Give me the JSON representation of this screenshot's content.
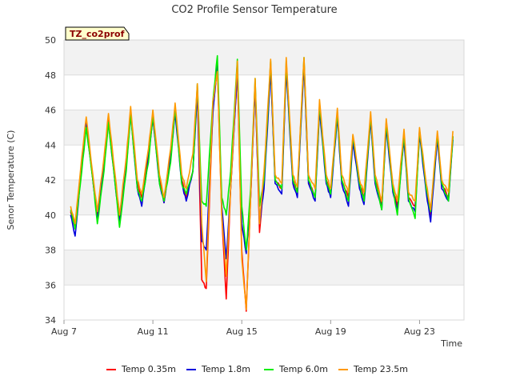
{
  "chart_data": {
    "type": "line",
    "title": "CO2 Profile Sensor Temperature",
    "badge": "TZ_co2prof",
    "xlabel": "Time",
    "ylabel": "Senor Temperature (C)",
    "ylim": [
      34,
      50
    ],
    "yticks": [
      34,
      36,
      38,
      40,
      42,
      44,
      46,
      48,
      50
    ],
    "ytick_labels": [
      "34",
      "36",
      "38",
      "40",
      "42",
      "44",
      "46",
      "48",
      "50"
    ],
    "xlim": [
      7,
      25
    ],
    "xticks": [
      7,
      11,
      15,
      19,
      23
    ],
    "xtick_labels": [
      "Aug 7",
      "Aug 11",
      "Aug 15",
      "Aug 19",
      "Aug 23"
    ],
    "grid": true,
    "legend_position": "bottom",
    "series": [
      {
        "name": "Temp 0.35m",
        "color": "#ff0000",
        "x": [
          7.3,
          7.5,
          7.8,
          8.0,
          8.3,
          8.5,
          8.8,
          9.0,
          9.3,
          9.5,
          9.8,
          10.0,
          10.3,
          10.5,
          10.8,
          11.0,
          11.3,
          11.5,
          11.8,
          12.0,
          12.3,
          12.5,
          12.8,
          13.0,
          13.2,
          13.4,
          13.7,
          13.9,
          14.1,
          14.3,
          14.5,
          14.8,
          15.0,
          15.2,
          15.4,
          15.6,
          15.8,
          16.0,
          16.3,
          16.5,
          16.8,
          17.0,
          17.3,
          17.5,
          17.8,
          18.0,
          18.3,
          18.5,
          18.8,
          19.0,
          19.3,
          19.5,
          19.8,
          20.0,
          20.3,
          20.5,
          20.8,
          21.0,
          21.3,
          21.5,
          21.8,
          22.0,
          22.3,
          22.5,
          22.8,
          23.0,
          23.3,
          23.5,
          23.8,
          24.0,
          24.3,
          24.5
        ],
        "values": [
          40.2,
          39.3,
          43.0,
          45.3,
          42.0,
          40.0,
          43.0,
          45.5,
          42.0,
          39.8,
          43.0,
          45.9,
          41.8,
          41.0,
          43.5,
          45.6,
          42.0,
          40.7,
          43.5,
          46.0,
          42.0,
          41.0,
          42.5,
          47.2,
          36.3,
          35.8,
          46.0,
          48.5,
          40.0,
          35.2,
          41.5,
          48.2,
          38.0,
          34.5,
          41.0,
          47.5,
          39.0,
          42.0,
          48.5,
          42.0,
          41.5,
          48.5,
          42.0,
          41.3,
          48.8,
          42.0,
          41.0,
          46.2,
          42.0,
          41.2,
          45.8,
          42.0,
          41.0,
          44.3,
          41.8,
          41.0,
          45.6,
          42.0,
          40.5,
          45.2,
          41.5,
          40.5,
          44.5,
          41.0,
          40.5,
          44.8,
          41.5,
          40.0,
          44.5,
          41.8,
          41.0,
          44.5
        ]
      },
      {
        "name": "Temp 1.8m",
        "color": "#0000dd",
        "x": [
          7.3,
          7.5,
          7.8,
          8.0,
          8.3,
          8.5,
          8.8,
          9.0,
          9.3,
          9.5,
          9.8,
          10.0,
          10.3,
          10.5,
          10.8,
          11.0,
          11.3,
          11.5,
          11.8,
          12.0,
          12.3,
          12.5,
          12.8,
          13.0,
          13.2,
          13.4,
          13.7,
          13.9,
          14.1,
          14.3,
          14.5,
          14.8,
          15.0,
          15.2,
          15.4,
          15.6,
          15.8,
          16.0,
          16.3,
          16.5,
          16.8,
          17.0,
          17.3,
          17.5,
          17.8,
          18.0,
          18.3,
          18.5,
          18.8,
          19.0,
          19.3,
          19.5,
          19.8,
          20.0,
          20.3,
          20.5,
          20.8,
          21.0,
          21.3,
          21.5,
          21.8,
          22.0,
          22.3,
          22.5,
          22.8,
          23.0,
          23.3,
          23.5,
          23.8,
          24.0,
          24.3,
          24.5
        ],
        "values": [
          40.0,
          38.8,
          42.8,
          45.2,
          42.0,
          39.7,
          42.8,
          45.3,
          41.8,
          39.5,
          42.8,
          45.7,
          41.5,
          40.5,
          43.3,
          45.5,
          41.8,
          40.7,
          43.3,
          45.8,
          41.8,
          40.8,
          42.5,
          47.0,
          38.5,
          38.0,
          45.8,
          48.6,
          40.5,
          37.5,
          41.5,
          48.2,
          39.5,
          37.8,
          41.0,
          47.3,
          39.5,
          41.5,
          48.3,
          41.8,
          41.2,
          48.3,
          41.8,
          41.0,
          48.6,
          41.8,
          40.8,
          46.0,
          41.8,
          41.0,
          45.6,
          41.8,
          40.5,
          44.2,
          41.5,
          40.6,
          45.4,
          41.8,
          40.3,
          45.0,
          41.3,
          40.3,
          44.3,
          40.8,
          40.2,
          44.6,
          41.3,
          39.6,
          44.4,
          41.5,
          40.8,
          44.3
        ]
      },
      {
        "name": "Temp 6.0m",
        "color": "#00ee00",
        "x": [
          7.3,
          7.5,
          7.8,
          8.0,
          8.3,
          8.5,
          8.8,
          9.0,
          9.3,
          9.5,
          9.8,
          10.0,
          10.3,
          10.5,
          10.8,
          11.0,
          11.3,
          11.5,
          11.8,
          12.0,
          12.3,
          12.5,
          12.8,
          13.0,
          13.2,
          13.4,
          13.7,
          13.9,
          14.1,
          14.3,
          14.5,
          14.8,
          15.0,
          15.2,
          15.4,
          15.6,
          15.8,
          16.0,
          16.3,
          16.5,
          16.8,
          17.0,
          17.3,
          17.5,
          17.8,
          18.0,
          18.3,
          18.5,
          18.8,
          19.0,
          19.3,
          19.5,
          19.8,
          20.0,
          20.3,
          20.5,
          20.8,
          21.0,
          21.3,
          21.5,
          21.8,
          22.0,
          22.3,
          22.5,
          22.8,
          23.0,
          23.3,
          23.5,
          23.8,
          24.0,
          24.3,
          24.5
        ],
        "values": [
          40.3,
          39.2,
          42.5,
          45.0,
          42.0,
          39.5,
          42.5,
          45.3,
          41.8,
          39.3,
          42.5,
          45.8,
          41.5,
          40.8,
          43.0,
          45.7,
          41.8,
          40.8,
          43.0,
          46.1,
          41.8,
          41.2,
          42.5,
          47.5,
          40.8,
          40.5,
          46.5,
          49.1,
          41.0,
          40.0,
          42.5,
          48.9,
          40.5,
          38.0,
          41.5,
          47.8,
          40.5,
          42.0,
          48.8,
          42.0,
          41.5,
          48.8,
          42.0,
          41.3,
          49.0,
          42.0,
          41.0,
          46.3,
          42.0,
          41.2,
          45.9,
          42.0,
          40.8,
          44.5,
          41.8,
          40.8,
          45.7,
          42.0,
          40.3,
          45.3,
          41.5,
          40.0,
          44.6,
          41.0,
          39.8,
          44.9,
          41.5,
          40.2,
          44.6,
          41.8,
          40.8,
          44.5
        ]
      },
      {
        "name": "Temp 23.5m",
        "color": "#ff9900",
        "x": [
          7.3,
          7.5,
          7.8,
          8.0,
          8.3,
          8.5,
          8.8,
          9.0,
          9.3,
          9.5,
          9.8,
          10.0,
          10.3,
          10.5,
          10.8,
          11.0,
          11.3,
          11.5,
          11.8,
          12.0,
          12.3,
          12.5,
          12.8,
          13.0,
          13.2,
          13.4,
          13.7,
          13.9,
          14.1,
          14.3,
          14.5,
          14.8,
          15.0,
          15.2,
          15.4,
          15.6,
          15.8,
          16.0,
          16.3,
          16.5,
          16.8,
          17.0,
          17.3,
          17.5,
          17.8,
          18.0,
          18.3,
          18.5,
          18.8,
          19.0,
          19.3,
          19.5,
          19.8,
          20.0,
          20.3,
          20.5,
          20.8,
          21.0,
          21.3,
          21.5,
          21.8,
          22.0,
          22.3,
          22.5,
          22.8,
          23.0,
          23.3,
          23.5,
          23.8,
          24.0,
          24.3,
          24.5
        ],
        "values": [
          40.5,
          39.5,
          43.3,
          45.6,
          42.3,
          40.2,
          43.3,
          45.8,
          42.3,
          40.0,
          43.3,
          46.2,
          42.0,
          41.2,
          43.8,
          46.0,
          42.3,
          41.0,
          43.8,
          46.4,
          42.3,
          41.5,
          43.5,
          47.5,
          39.5,
          36.2,
          46.5,
          48.2,
          40.0,
          36.5,
          41.5,
          48.8,
          37.5,
          34.6,
          41.0,
          47.8,
          39.5,
          42.5,
          48.9,
          42.3,
          41.8,
          49.0,
          42.3,
          41.6,
          49.0,
          42.3,
          41.5,
          46.6,
          42.3,
          41.5,
          46.1,
          42.3,
          41.3,
          44.6,
          42.0,
          41.3,
          45.9,
          42.3,
          40.8,
          45.5,
          41.8,
          40.8,
          44.9,
          41.3,
          40.8,
          45.0,
          41.8,
          40.3,
          44.8,
          42.0,
          41.3,
          44.8
        ]
      }
    ]
  }
}
